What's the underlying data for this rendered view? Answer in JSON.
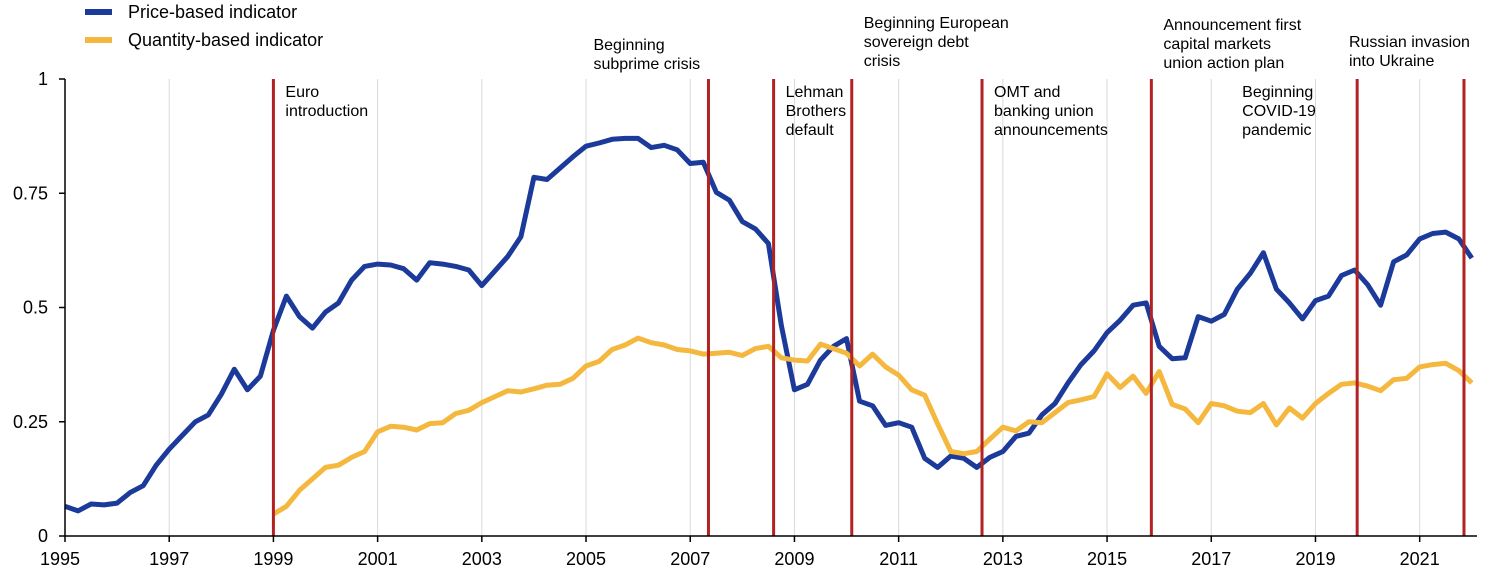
{
  "chart_data": {
    "type": "line",
    "title": "",
    "xlabel": "",
    "ylabel": "",
    "xlim": [
      1995,
      2022.1
    ],
    "ylim": [
      0,
      1
    ],
    "yticks": [
      {
        "value": 0,
        "label": "0"
      },
      {
        "value": 0.25,
        "label": "0.25"
      },
      {
        "value": 0.5,
        "label": "0.5"
      },
      {
        "value": 0.75,
        "label": "0.75"
      },
      {
        "value": 1,
        "label": "1"
      }
    ],
    "xticks": [
      {
        "value": 1995,
        "label": "1995"
      },
      {
        "value": 1997,
        "label": "1997"
      },
      {
        "value": 1999,
        "label": "1999"
      },
      {
        "value": 2001,
        "label": "2001"
      },
      {
        "value": 2003,
        "label": "2003"
      },
      {
        "value": 2005,
        "label": "2005"
      },
      {
        "value": 2007,
        "label": "2007"
      },
      {
        "value": 2009,
        "label": "2009"
      },
      {
        "value": 2011,
        "label": "2011"
      },
      {
        "value": 2013,
        "label": "2013"
      },
      {
        "value": 2015,
        "label": "2015"
      },
      {
        "value": 2017,
        "label": "2017"
      },
      {
        "value": 2019,
        "label": "2019"
      },
      {
        "value": 2021,
        "label": "2021"
      }
    ],
    "legend": {
      "position": "top-left"
    },
    "grid": "vertical",
    "series": [
      {
        "name": "Price-based indicator",
        "color": "#1b3a9a",
        "points": [
          [
            1995.0,
            0.065
          ],
          [
            1995.25,
            0.055
          ],
          [
            1995.5,
            0.07
          ],
          [
            1995.75,
            0.068
          ],
          [
            1996.0,
            0.072
          ],
          [
            1996.25,
            0.095
          ],
          [
            1996.5,
            0.11
          ],
          [
            1996.75,
            0.155
          ],
          [
            1997.0,
            0.19
          ],
          [
            1997.25,
            0.22
          ],
          [
            1997.5,
            0.25
          ],
          [
            1997.75,
            0.265
          ],
          [
            1998.0,
            0.31
          ],
          [
            1998.25,
            0.365
          ],
          [
            1998.5,
            0.32
          ],
          [
            1998.75,
            0.35
          ],
          [
            1999.0,
            0.45
          ],
          [
            1999.25,
            0.525
          ],
          [
            1999.5,
            0.48
          ],
          [
            1999.75,
            0.455
          ],
          [
            2000.0,
            0.49
          ],
          [
            2000.25,
            0.51
          ],
          [
            2000.5,
            0.56
          ],
          [
            2000.75,
            0.59
          ],
          [
            2001.0,
            0.595
          ],
          [
            2001.25,
            0.593
          ],
          [
            2001.5,
            0.585
          ],
          [
            2001.75,
            0.56
          ],
          [
            2002.0,
            0.598
          ],
          [
            2002.25,
            0.595
          ],
          [
            2002.5,
            0.59
          ],
          [
            2002.75,
            0.582
          ],
          [
            2003.0,
            0.548
          ],
          [
            2003.25,
            0.58
          ],
          [
            2003.5,
            0.612
          ],
          [
            2003.75,
            0.655
          ],
          [
            2004.0,
            0.785
          ],
          [
            2004.25,
            0.78
          ],
          [
            2004.5,
            0.805
          ],
          [
            2004.75,
            0.83
          ],
          [
            2005.0,
            0.853
          ],
          [
            2005.25,
            0.86
          ],
          [
            2005.5,
            0.868
          ],
          [
            2005.75,
            0.87
          ],
          [
            2006.0,
            0.87
          ],
          [
            2006.25,
            0.85
          ],
          [
            2006.5,
            0.855
          ],
          [
            2006.75,
            0.845
          ],
          [
            2007.0,
            0.815
          ],
          [
            2007.25,
            0.818
          ],
          [
            2007.5,
            0.752
          ],
          [
            2007.75,
            0.735
          ],
          [
            2008.0,
            0.688
          ],
          [
            2008.25,
            0.672
          ],
          [
            2008.5,
            0.64
          ],
          [
            2008.75,
            0.46
          ],
          [
            2009.0,
            0.32
          ],
          [
            2009.25,
            0.332
          ],
          [
            2009.5,
            0.385
          ],
          [
            2009.75,
            0.415
          ],
          [
            2010.0,
            0.432
          ],
          [
            2010.25,
            0.295
          ],
          [
            2010.5,
            0.285
          ],
          [
            2010.75,
            0.242
          ],
          [
            2011.0,
            0.248
          ],
          [
            2011.25,
            0.238
          ],
          [
            2011.5,
            0.17
          ],
          [
            2011.75,
            0.15
          ],
          [
            2012.0,
            0.175
          ],
          [
            2012.25,
            0.17
          ],
          [
            2012.5,
            0.15
          ],
          [
            2012.75,
            0.172
          ],
          [
            2013.0,
            0.185
          ],
          [
            2013.25,
            0.218
          ],
          [
            2013.5,
            0.225
          ],
          [
            2013.75,
            0.265
          ],
          [
            2014.0,
            0.29
          ],
          [
            2014.25,
            0.335
          ],
          [
            2014.5,
            0.375
          ],
          [
            2014.75,
            0.405
          ],
          [
            2015.0,
            0.445
          ],
          [
            2015.25,
            0.472
          ],
          [
            2015.5,
            0.505
          ],
          [
            2015.75,
            0.51
          ],
          [
            2016.0,
            0.415
          ],
          [
            2016.25,
            0.388
          ],
          [
            2016.5,
            0.39
          ],
          [
            2016.75,
            0.48
          ],
          [
            2017.0,
            0.47
          ],
          [
            2017.25,
            0.485
          ],
          [
            2017.5,
            0.54
          ],
          [
            2017.75,
            0.575
          ],
          [
            2018.0,
            0.62
          ],
          [
            2018.25,
            0.54
          ],
          [
            2018.5,
            0.51
          ],
          [
            2018.75,
            0.475
          ],
          [
            2019.0,
            0.515
          ],
          [
            2019.25,
            0.525
          ],
          [
            2019.5,
            0.57
          ],
          [
            2019.75,
            0.582
          ],
          [
            2020.0,
            0.55
          ],
          [
            2020.25,
            0.505
          ],
          [
            2020.5,
            0.6
          ],
          [
            2020.75,
            0.615
          ],
          [
            2021.0,
            0.65
          ],
          [
            2021.25,
            0.662
          ],
          [
            2021.5,
            0.665
          ],
          [
            2021.75,
            0.65
          ],
          [
            2022.0,
            0.608
          ]
        ]
      },
      {
        "name": "Quantity-based indicator",
        "color": "#f4b83e",
        "points": [
          [
            1999.0,
            0.048
          ],
          [
            1999.25,
            0.065
          ],
          [
            1999.5,
            0.1
          ],
          [
            1999.75,
            0.125
          ],
          [
            2000.0,
            0.15
          ],
          [
            2000.25,
            0.155
          ],
          [
            2000.5,
            0.172
          ],
          [
            2000.75,
            0.185
          ],
          [
            2001.0,
            0.228
          ],
          [
            2001.25,
            0.24
          ],
          [
            2001.5,
            0.238
          ],
          [
            2001.75,
            0.232
          ],
          [
            2002.0,
            0.246
          ],
          [
            2002.25,
            0.248
          ],
          [
            2002.5,
            0.268
          ],
          [
            2002.75,
            0.275
          ],
          [
            2003.0,
            0.292
          ],
          [
            2003.25,
            0.305
          ],
          [
            2003.5,
            0.318
          ],
          [
            2003.75,
            0.315
          ],
          [
            2004.0,
            0.322
          ],
          [
            2004.25,
            0.33
          ],
          [
            2004.5,
            0.332
          ],
          [
            2004.75,
            0.345
          ],
          [
            2005.0,
            0.372
          ],
          [
            2005.25,
            0.382
          ],
          [
            2005.5,
            0.408
          ],
          [
            2005.75,
            0.418
          ],
          [
            2006.0,
            0.433
          ],
          [
            2006.25,
            0.423
          ],
          [
            2006.5,
            0.418
          ],
          [
            2006.75,
            0.408
          ],
          [
            2007.0,
            0.405
          ],
          [
            2007.25,
            0.398
          ],
          [
            2007.5,
            0.4
          ],
          [
            2007.75,
            0.402
          ],
          [
            2008.0,
            0.395
          ],
          [
            2008.25,
            0.41
          ],
          [
            2008.5,
            0.415
          ],
          [
            2008.75,
            0.39
          ],
          [
            2009.0,
            0.385
          ],
          [
            2009.25,
            0.383
          ],
          [
            2009.5,
            0.42
          ],
          [
            2009.75,
            0.41
          ],
          [
            2010.0,
            0.4
          ],
          [
            2010.25,
            0.372
          ],
          [
            2010.5,
            0.398
          ],
          [
            2010.75,
            0.37
          ],
          [
            2011.0,
            0.352
          ],
          [
            2011.25,
            0.32
          ],
          [
            2011.5,
            0.308
          ],
          [
            2011.75,
            0.245
          ],
          [
            2012.0,
            0.185
          ],
          [
            2012.25,
            0.18
          ],
          [
            2012.5,
            0.185
          ],
          [
            2012.75,
            0.212
          ],
          [
            2013.0,
            0.238
          ],
          [
            2013.25,
            0.23
          ],
          [
            2013.5,
            0.25
          ],
          [
            2013.75,
            0.248
          ],
          [
            2014.0,
            0.27
          ],
          [
            2014.25,
            0.292
          ],
          [
            2014.5,
            0.298
          ],
          [
            2014.75,
            0.305
          ],
          [
            2015.0,
            0.355
          ],
          [
            2015.25,
            0.325
          ],
          [
            2015.5,
            0.35
          ],
          [
            2015.75,
            0.312
          ],
          [
            2016.0,
            0.36
          ],
          [
            2016.25,
            0.288
          ],
          [
            2016.5,
            0.278
          ],
          [
            2016.75,
            0.248
          ],
          [
            2017.0,
            0.29
          ],
          [
            2017.25,
            0.285
          ],
          [
            2017.5,
            0.273
          ],
          [
            2017.75,
            0.27
          ],
          [
            2018.0,
            0.29
          ],
          [
            2018.25,
            0.243
          ],
          [
            2018.5,
            0.28
          ],
          [
            2018.75,
            0.258
          ],
          [
            2019.0,
            0.29
          ],
          [
            2019.25,
            0.312
          ],
          [
            2019.5,
            0.332
          ],
          [
            2019.75,
            0.335
          ],
          [
            2020.0,
            0.328
          ],
          [
            2020.25,
            0.318
          ],
          [
            2020.5,
            0.342
          ],
          [
            2020.75,
            0.345
          ],
          [
            2021.0,
            0.37
          ],
          [
            2021.25,
            0.375
          ],
          [
            2021.5,
            0.378
          ],
          [
            2021.75,
            0.362
          ],
          [
            2022.0,
            0.335
          ]
        ]
      }
    ],
    "events": [
      {
        "x": 1999.0,
        "label": [
          "Euro",
          "introduction"
        ],
        "label_side": "right"
      },
      {
        "x": 2007.35,
        "label": [
          "Beginning",
          "subprime crisis"
        ],
        "label_side": "left"
      },
      {
        "x": 2008.6,
        "label": [
          "Lehman",
          "Brothers",
          "default"
        ],
        "label_side": "right"
      },
      {
        "x": 2010.1,
        "label": [
          "Beginning European",
          "sovereign debt",
          "crisis"
        ],
        "label_side": "right"
      },
      {
        "x": 2012.6,
        "label": [
          "OMT and",
          "banking union",
          "announcements"
        ],
        "label_side": "right"
      },
      {
        "x": 2015.85,
        "label": [
          "Announcement first",
          "capital markets",
          "union action plan"
        ],
        "label_side": "right"
      },
      {
        "x": 2019.8,
        "label": [
          "Beginning",
          "COVID-19",
          "pandemic"
        ],
        "label_side": "left"
      },
      {
        "x": 2021.85,
        "label": [
          "Russian invasion",
          "into Ukraine"
        ],
        "label_side": "left"
      }
    ],
    "colors": {
      "event_line": "#b22222",
      "grid": "#d9d9d9",
      "axis": "#000000"
    }
  }
}
